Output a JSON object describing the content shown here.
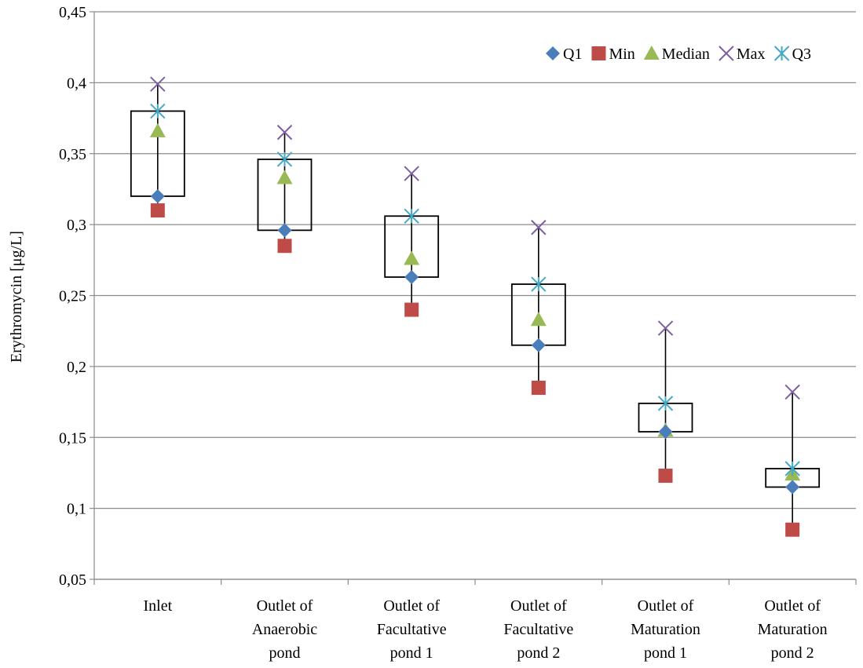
{
  "chart_data": {
    "type": "box",
    "title": "",
    "ylabel": "Erythromycin [μg/L]",
    "xlabel": "",
    "ylim": [
      0.05,
      0.45
    ],
    "y_ticks": [
      "0,05",
      "0,1",
      "0,15",
      "0,2",
      "0,25",
      "0,3",
      "0,35",
      "0,4",
      "0,45"
    ],
    "y_tick_values": [
      0.05,
      0.1,
      0.15,
      0.2,
      0.25,
      0.3,
      0.35,
      0.4,
      0.45
    ],
    "grid": true,
    "legend_position": "top-right",
    "categories": [
      [
        "Inlet"
      ],
      [
        "Outlet of",
        "Anaerobic",
        "pond"
      ],
      [
        "Outlet of",
        "Facultative",
        "pond 1"
      ],
      [
        "Outlet of",
        "Facultative",
        "pond 2"
      ],
      [
        "Outlet of",
        "Maturation",
        "pond 1"
      ],
      [
        "Outlet of",
        "Maturation",
        "pond 2"
      ]
    ],
    "series": [
      {
        "name": "Q1",
        "marker": "diamond",
        "color": "#4a7ebb",
        "values": [
          0.32,
          0.296,
          0.263,
          0.215,
          0.154,
          0.115
        ]
      },
      {
        "name": "Min",
        "marker": "square",
        "color": "#be4b48",
        "values": [
          0.31,
          0.285,
          0.24,
          0.185,
          0.123,
          0.085
        ]
      },
      {
        "name": "Median",
        "marker": "triangle",
        "color": "#98b954",
        "values": [
          0.366,
          0.333,
          0.276,
          0.233,
          0.155,
          0.124
        ]
      },
      {
        "name": "Max",
        "marker": "x",
        "color": "#7d60a0",
        "values": [
          0.399,
          0.365,
          0.336,
          0.298,
          0.227,
          0.182
        ]
      },
      {
        "name": "Q3",
        "marker": "asterisk",
        "color": "#46aac5",
        "values": [
          0.38,
          0.346,
          0.306,
          0.258,
          0.174,
          0.128
        ]
      }
    ]
  }
}
